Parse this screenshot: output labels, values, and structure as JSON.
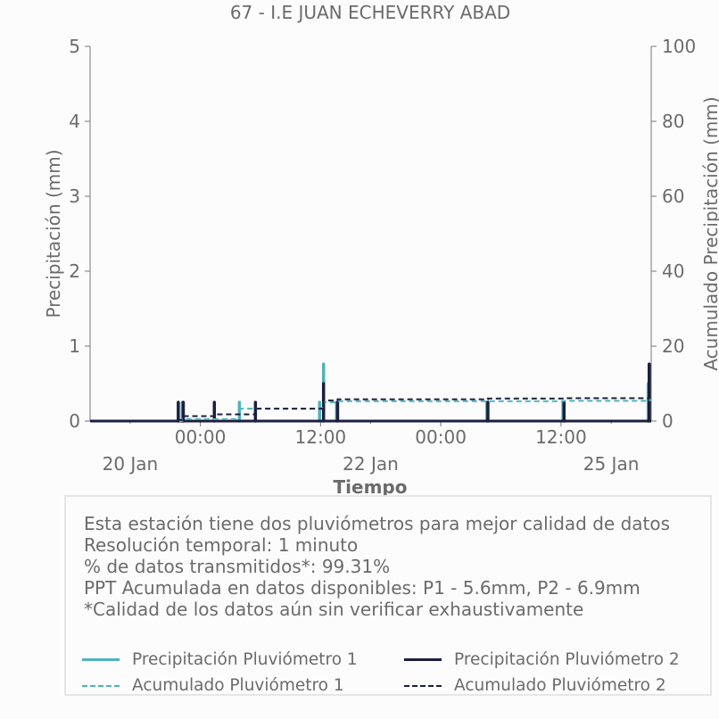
{
  "chart_data": {
    "type": "bar",
    "title": "67 - I.E JUAN ECHEVERRY ABAD",
    "xlabel": "Tiempo",
    "ylabel": "Precipitación (mm)",
    "y2label": "Acumulado Precipitación (mm)",
    "ylim": [
      0,
      5
    ],
    "y2lim": [
      0,
      100
    ],
    "yticks": [
      "0",
      "1",
      "2",
      "3",
      "4",
      "5"
    ],
    "y2ticks": [
      "0",
      "20",
      "40",
      "60",
      "80",
      "100"
    ],
    "xticks": [
      {
        "t": 31,
        "label": "00:00"
      },
      {
        "t": 43,
        "label": "12:00"
      },
      {
        "t": 55,
        "label": "00:00"
      },
      {
        "t": 67,
        "label": "12:00"
      }
    ],
    "xdates": [
      {
        "t": 24,
        "label": "20 Jan"
      },
      {
        "t": 48,
        "label": "22 Jan"
      },
      {
        "t": 72,
        "label": "25 Jan"
      }
    ],
    "xlim": [
      20,
      76
    ],
    "colors": {
      "p1": "#4db3bf",
      "p2": "#1c1f3f"
    },
    "series": [
      {
        "name": "Precipitación Pluviómetro 1",
        "kind": "bar",
        "points": [
          [
            29.2,
            0.25
          ],
          [
            34.9,
            0.25
          ],
          [
            42.9,
            0.25
          ],
          [
            43.3,
            0.76
          ],
          [
            44.6,
            0.25
          ],
          [
            59.6,
            0.25
          ],
          [
            67.2,
            0.25
          ],
          [
            75.7,
            0.5
          ]
        ]
      },
      {
        "name": "Precipitación Pluviómetro 2",
        "kind": "bar",
        "points": [
          [
            28.8,
            0.25
          ],
          [
            29.3,
            0.25
          ],
          [
            32.4,
            0.25
          ],
          [
            36.5,
            0.25
          ],
          [
            43.3,
            0.5
          ],
          [
            44.7,
            0.25
          ],
          [
            59.7,
            0.25
          ],
          [
            67.3,
            0.25
          ],
          [
            75.8,
            0.76
          ]
        ]
      },
      {
        "name": "Acumulado Pluviómetro 1",
        "kind": "step",
        "points": [
          [
            20,
            0
          ],
          [
            29.2,
            0.5
          ],
          [
            34.9,
            3.3
          ],
          [
            42.9,
            3.5
          ],
          [
            43.3,
            5.0
          ],
          [
            44.6,
            5.3
          ],
          [
            59.6,
            5.3
          ],
          [
            67.2,
            5.4
          ],
          [
            75.7,
            5.6
          ],
          [
            76,
            5.6
          ]
        ]
      },
      {
        "name": "Acumulado Pluviómetro 2",
        "kind": "step",
        "points": [
          [
            20,
            0
          ],
          [
            28.8,
            0.3
          ],
          [
            29.3,
            1.3
          ],
          [
            32.4,
            1.8
          ],
          [
            36.5,
            3.3
          ],
          [
            43.3,
            5.5
          ],
          [
            44.7,
            5.8
          ],
          [
            59.7,
            6.0
          ],
          [
            67.3,
            6.1
          ],
          [
            75.8,
            6.9
          ],
          [
            76,
            6.9
          ]
        ]
      }
    ]
  },
  "info": {
    "lines": [
      "Esta estación tiene dos pluviómetros para mejor calidad de datos",
      "Resolución temporal: 1 minuto",
      "% de datos transmitidos*: 99.31%",
      "PPT Acumulada en datos disponibles: P1 - 5.6mm, P2 - 6.9mm",
      "*Calidad de los datos aún sin verificar exhaustivamente"
    ]
  },
  "legend": {
    "p1_bar": "Precipitación Pluviómetro 1",
    "p2_bar": "Precipitación Pluviómetro 2",
    "p1_acc": "Acumulado Pluviómetro 1",
    "p2_acc": "Acumulado Pluviómetro 2"
  }
}
